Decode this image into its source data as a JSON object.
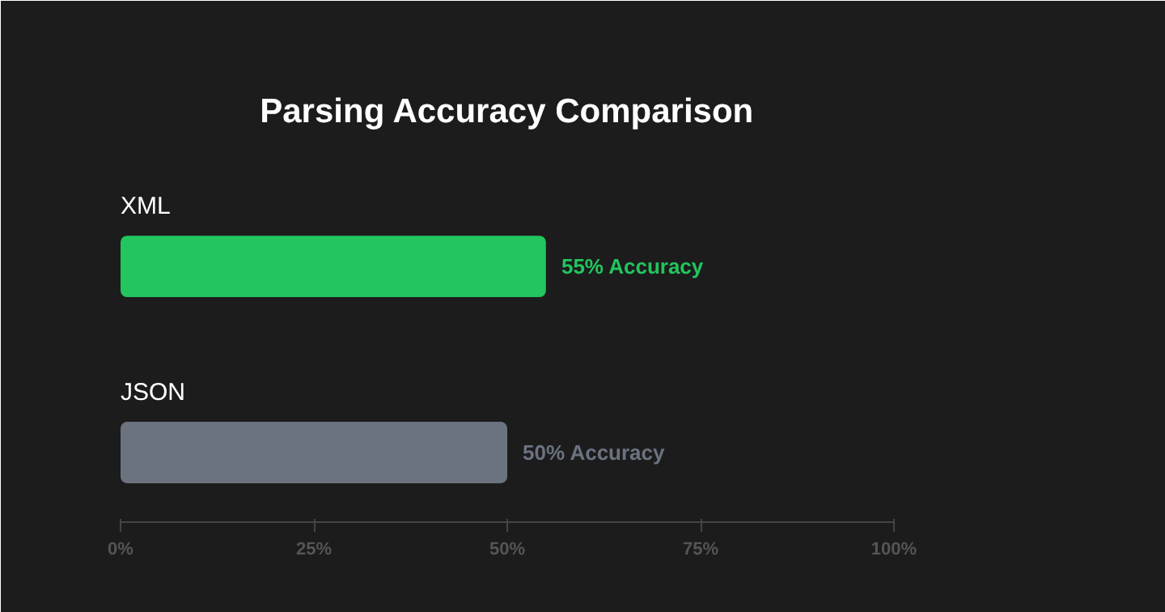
{
  "chart_data": {
    "type": "bar",
    "orientation": "horizontal",
    "title": "Parsing Accuracy Comparison",
    "categories": [
      "XML",
      "JSON"
    ],
    "values": [
      55,
      50
    ],
    "colors": [
      "#22c55e",
      "#6b7280"
    ],
    "value_labels": [
      "55% Accuracy",
      "50% Accuracy"
    ],
    "xlim": [
      0,
      100
    ],
    "xticks": [
      {
        "value": 0,
        "label": "0%"
      },
      {
        "value": 25,
        "label": "25%"
      },
      {
        "value": 50,
        "label": "50%"
      },
      {
        "value": 75,
        "label": "75%"
      },
      {
        "value": 100,
        "label": "100%"
      }
    ]
  }
}
